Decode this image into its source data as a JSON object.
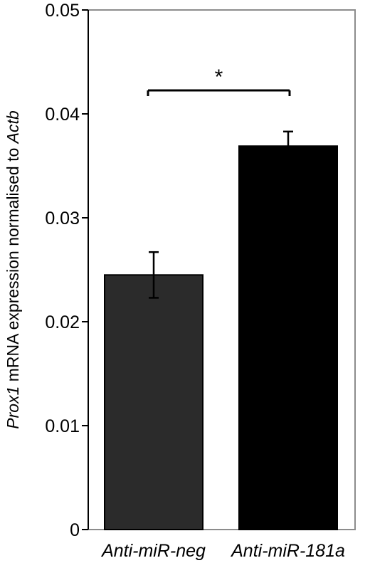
{
  "chart_data": {
    "type": "bar",
    "categories": [
      "Anti-miR-neg",
      "Anti-miR-181a"
    ],
    "values": [
      0.0245,
      0.0369
    ],
    "errors": [
      0.0022,
      0.0014
    ],
    "bar_colors": [
      "#2b2b2b",
      "#000000"
    ],
    "frame_color": "#8c8c8c",
    "ylabel": {
      "gene": "Prox1",
      "middle": " mRNA expression normalised to ",
      "reference": "Actb"
    },
    "ylim": [
      0,
      0.05
    ],
    "yticks": [
      "0",
      "0.01",
      "0.02",
      "0.03",
      "0.04",
      "0.05"
    ],
    "significance": {
      "label": "*",
      "between": [
        0,
        1
      ]
    },
    "grid": false,
    "legend": "none"
  }
}
